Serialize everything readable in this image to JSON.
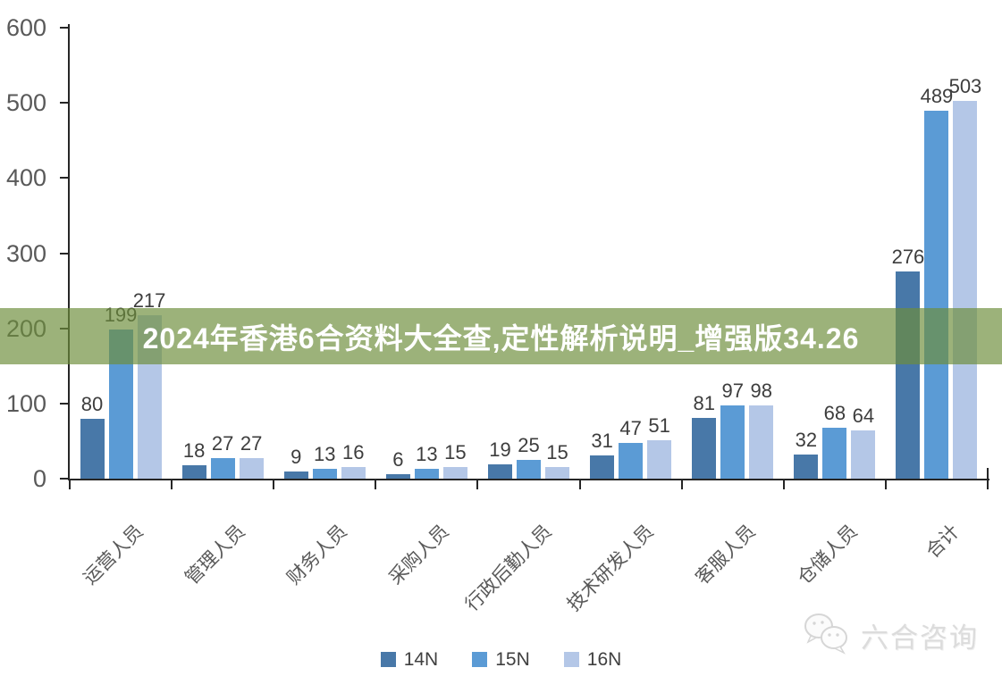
{
  "banner": {
    "text": "2024年香港6合资料大全查,定性解析说明_增强版34.26",
    "bg_color": "#6D8D3B",
    "bg_opacity": 0.68,
    "text_color": "#FFFFFF"
  },
  "watermark": {
    "text": "六合咨询",
    "icon": "chat-bubbles-icon",
    "color": "#DCDCDC"
  },
  "chart_data": {
    "type": "bar",
    "title": "",
    "xlabel": "",
    "ylabel": "",
    "categories": [
      "运营人员",
      "管理人员",
      "财务人员",
      "采购人员",
      "行政后勤人员",
      "技术研发人员",
      "客服人员",
      "仓储人员",
      "合计"
    ],
    "series": [
      {
        "name": "14N",
        "color": "#4878A8",
        "values": [
          80,
          18,
          9,
          6,
          19,
          31,
          81,
          32,
          276
        ]
      },
      {
        "name": "15N",
        "color": "#5B9BD5",
        "values": [
          199,
          27,
          13,
          13,
          25,
          47,
          97,
          68,
          489
        ]
      },
      {
        "name": "16N",
        "color": "#B4C7E7",
        "values": [
          217,
          27,
          16,
          15,
          15,
          51,
          98,
          64,
          503
        ]
      }
    ],
    "ylim": [
      0,
      600
    ],
    "yticks": [
      0,
      100,
      200,
      300,
      400,
      500,
      600
    ],
    "grid": false,
    "data_labels": true,
    "legend_position": "bottom",
    "axis_color": "#262626",
    "tick_label_color": "#595959",
    "data_label_color": "#3D3D3D"
  }
}
